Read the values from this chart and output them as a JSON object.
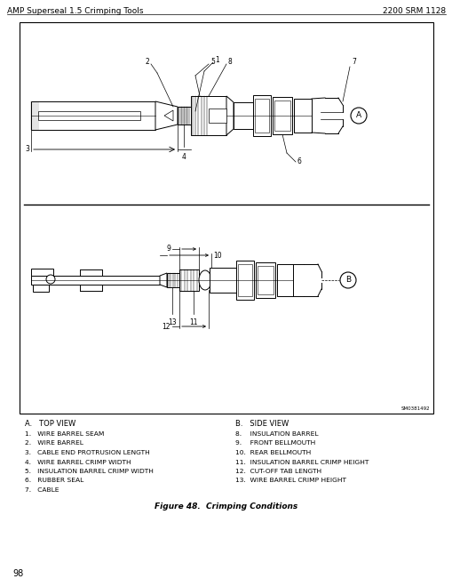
{
  "header_left": "AMP Superseal 1.5 Crimping Tools",
  "header_right": "2200 SRM 1128",
  "header_fontsize": 6.5,
  "bg_color": "#ffffff",
  "label_A": "A",
  "label_B": "B",
  "figure_caption": "Figure 48.  Crimping Conditions",
  "section_A_title": "A.   TOP VIEW",
  "section_B_title": "B.   SIDE VIEW",
  "items_left": [
    "1.   WIRE BARREL SEAM",
    "2.   WIRE BARREL",
    "3.   CABLE END PROTRUSION LENGTH",
    "4.   WIRE BARREL CRIMP WIDTH",
    "5.   INSULATION BARREL CRIMP WIDTH",
    "6.   RUBBER SEAL",
    "7.   CABLE"
  ],
  "items_right": [
    "8.    INSULATION BARREL",
    "9.    FRONT BELLMOUTH",
    "10.  REAR BELLMOUTH",
    "11.  INSULATION BARREL CRIMP HEIGHT",
    "12.  CUT-OFF TAB LENGTH",
    "13.  WIRE BARREL CRIMP HEIGHT"
  ],
  "page_number": "98",
  "stamp": "SM0381492"
}
